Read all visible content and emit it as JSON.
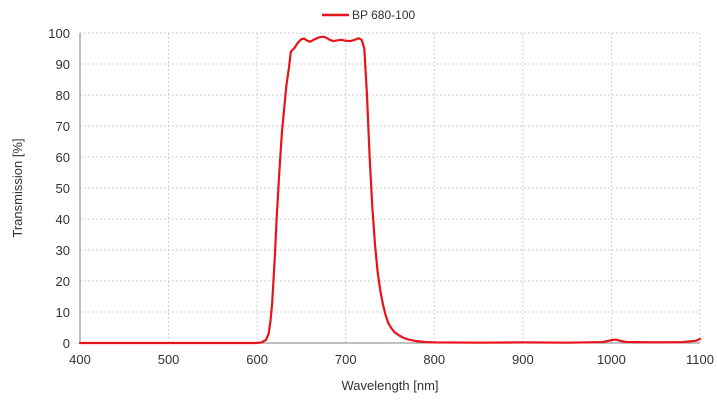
{
  "chart_data": {
    "type": "line",
    "xlabel": "Wavelength [nm]",
    "ylabel": "Transmission [%]",
    "xlim": [
      400,
      1100
    ],
    "ylim": [
      0,
      100
    ],
    "xticks": [
      400,
      500,
      600,
      700,
      800,
      900,
      1000,
      1100
    ],
    "yticks": [
      0,
      10,
      20,
      30,
      40,
      50,
      60,
      70,
      80,
      90,
      100
    ],
    "grid": true,
    "legend": "top-center",
    "series": [
      {
        "name": "BP 680-100",
        "color": "#e8141b",
        "x": [
          400,
          500,
          600,
          605,
          610,
          613,
          615,
          617,
          620,
          622,
          625,
          628,
          630,
          633,
          636,
          638,
          640,
          643,
          645,
          648,
          650,
          653,
          656,
          660,
          665,
          670,
          675,
          678,
          682,
          686,
          690,
          695,
          700,
          705,
          708,
          712,
          715,
          718,
          721,
          724,
          727,
          730,
          733,
          736,
          739,
          742,
          745,
          748,
          751,
          755,
          760,
          765,
          770,
          780,
          790,
          800,
          850,
          900,
          950,
          990,
          1000,
          1005,
          1010,
          1015,
          1020,
          1050,
          1080,
          1095,
          1100
        ],
        "y": [
          0,
          0,
          0,
          0.2,
          1,
          3,
          7,
          13,
          28,
          40,
          55,
          68,
          74,
          83,
          89,
          94,
          94.5,
          95.5,
          96.5,
          97.5,
          98,
          98.2,
          97.6,
          97.2,
          98,
          98.6,
          98.8,
          98.5,
          97.8,
          97.4,
          97.6,
          97.8,
          97.5,
          97.4,
          97.6,
          98,
          98.3,
          97.8,
          95,
          80,
          60,
          44,
          32,
          23,
          17,
          12.5,
          9,
          6.5,
          5,
          3.5,
          2.5,
          1.7,
          1.2,
          0.6,
          0.3,
          0.2,
          0.1,
          0.2,
          0.1,
          0.3,
          0.9,
          1.1,
          0.7,
          0.4,
          0.3,
          0.2,
          0.3,
          0.7,
          1.3
        ]
      }
    ]
  }
}
